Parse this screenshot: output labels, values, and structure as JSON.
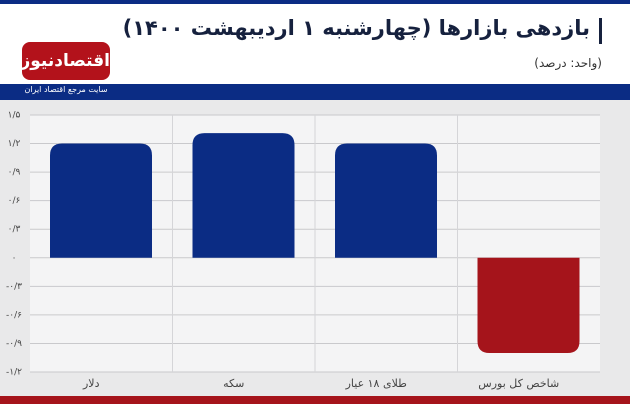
{
  "chart_data": {
    "type": "bar",
    "title": "بازدهی بازارها (چهارشنبه ۱ اردیبهشت ۱۴۰۰)",
    "subtitle": "(واحد: درصد)",
    "logo_text": "اقتصادنیوز",
    "logo_tagline": "سایت مرجع اقتصاد ایران",
    "categories": [
      "دلار",
      "سکه",
      "طلای ۱۸ عیار",
      "شاخص کل بورس"
    ],
    "values": [
      1.2,
      1.31,
      1.2,
      -1.0
    ],
    "colors": [
      "#0b2c84",
      "#0b2c84",
      "#0b2c84",
      "#a5141b"
    ],
    "ylim": [
      -1.2,
      1.5
    ],
    "yticks": [
      {
        "value": -1.2,
        "label": "-۱/۲"
      },
      {
        "value": -0.9,
        "label": "-۰/۹"
      },
      {
        "value": -0.6,
        "label": "-۰/۶"
      },
      {
        "value": -0.3,
        "label": "-۰/۳"
      },
      {
        "value": 0,
        "label": "۰"
      },
      {
        "value": 0.3,
        "label": "۰/۳"
      },
      {
        "value": 0.6,
        "label": "۰/۶"
      },
      {
        "value": 0.9,
        "label": "۰/۹"
      },
      {
        "value": 1.2,
        "label": "۱/۲"
      },
      {
        "value": 1.5,
        "label": "۱/۵"
      }
    ],
    "grid": true
  }
}
